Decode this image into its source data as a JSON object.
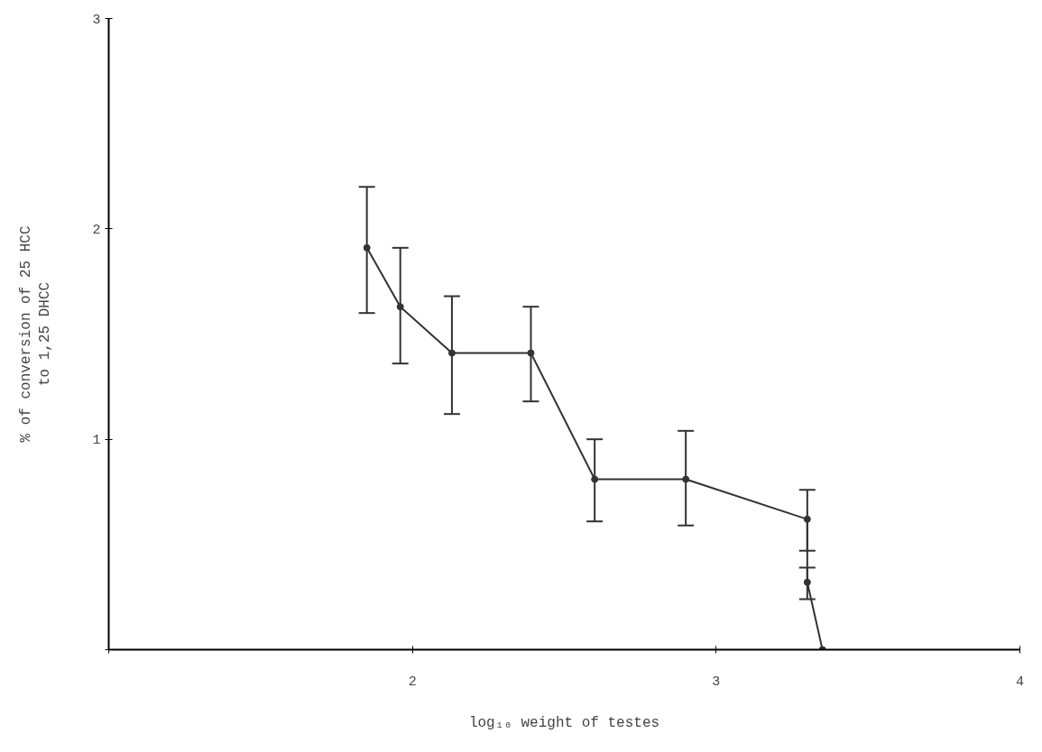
{
  "chart_data": {
    "type": "line",
    "xlabel": "log₁₀ weight of testes",
    "ylabel": "% of conversion of 25 HCC\nto 1,25 DHCC",
    "x": [
      1.85,
      1.96,
      2.13,
      2.39,
      2.6,
      2.9,
      3.3,
      3.3,
      3.35
    ],
    "series": [
      {
        "color": "#333333",
        "values": [
          1.91,
          1.63,
          1.41,
          1.41,
          0.81,
          0.81,
          0.62,
          0.32,
          0
        ],
        "errors": [
          [
            1.6,
            2.2
          ],
          [
            1.36,
            1.91
          ],
          [
            1.12,
            1.68
          ],
          [
            1.18,
            1.63
          ],
          [
            0.61,
            1.0
          ],
          [
            0.59,
            1.04
          ],
          [
            0.47,
            0.76
          ],
          [
            0.24,
            0.39
          ],
          null
        ]
      }
    ],
    "xlim": [
      1,
      4
    ],
    "ylim": [
      0,
      3
    ],
    "xticks": [
      {
        "value": 1,
        "label": null
      },
      2,
      3,
      4
    ],
    "yticks": [
      {
        "value": 0,
        "label": null
      },
      1,
      2,
      3
    ],
    "grid": false,
    "marker": "circle",
    "line_style": "solid"
  }
}
